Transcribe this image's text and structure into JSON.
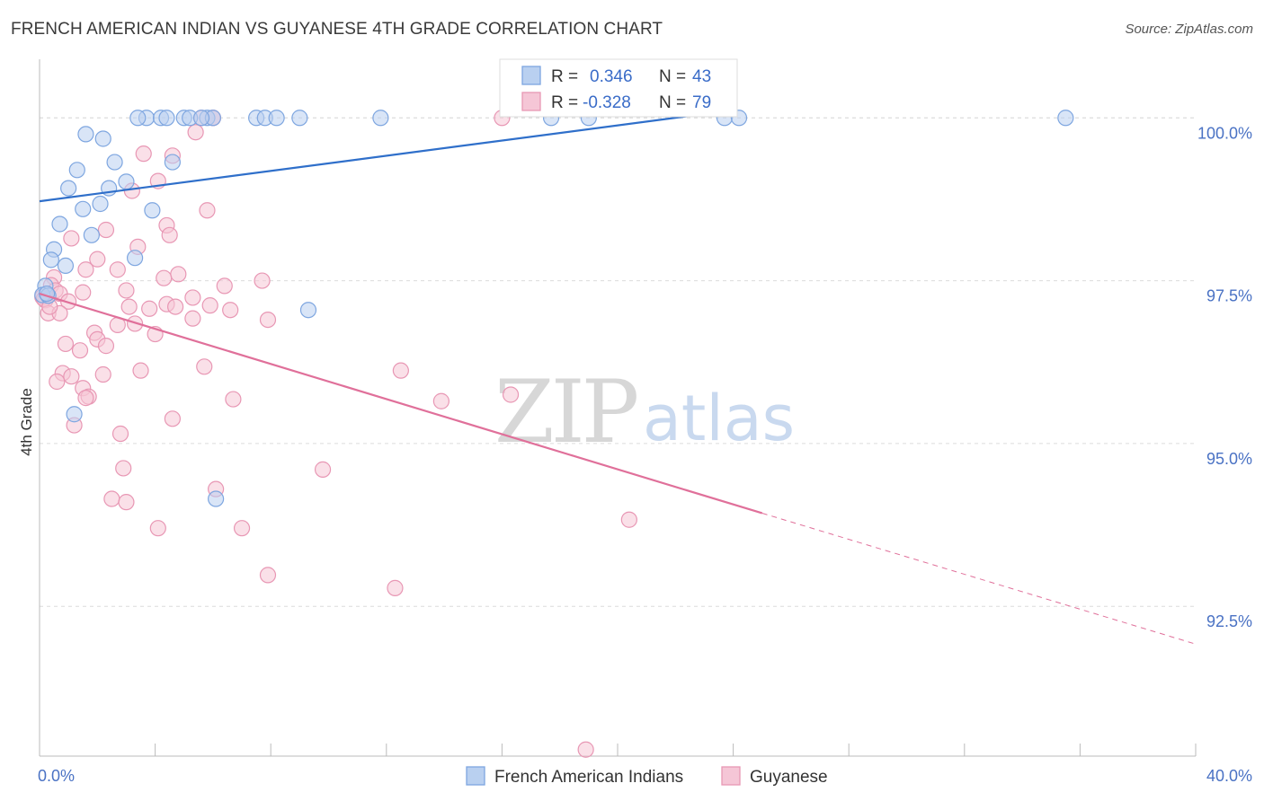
{
  "chart_data": {
    "type": "scatter",
    "title": "FRENCH AMERICAN INDIAN VS GUYANESE 4TH GRADE CORRELATION CHART",
    "source": "Source: ZipAtlas.com",
    "xlabel": "",
    "ylabel": "4th Grade",
    "xlim": [
      0,
      40
    ],
    "ylim": [
      90.2,
      100.9
    ],
    "x_tick_labels": [
      {
        "value": 0,
        "label": "0.0%"
      },
      {
        "value": 40,
        "label": "40.0%"
      }
    ],
    "y_tick_labels": [
      {
        "value": 100,
        "label": "100.0%"
      },
      {
        "value": 97.5,
        "label": "97.5%"
      },
      {
        "value": 95,
        "label": "95.0%"
      },
      {
        "value": 92.5,
        "label": "92.5%"
      }
    ],
    "grid": true,
    "watermark": {
      "zip": "ZIP",
      "atlas": "atlas"
    },
    "legend_position": "bottom",
    "stats_box_position": "top-center",
    "series": [
      {
        "name": "French American Indians",
        "color": "#7ea6e0",
        "fill": "#b9d0f0",
        "line_color": "#2f6fca",
        "R_label": "R =",
        "R": "0.346",
        "N_label": "N =",
        "N": "43",
        "trend": {
          "x0": 0,
          "y0": 98.72,
          "x1": 22.5,
          "y1": 100.03,
          "dashed_to": null
        },
        "points": [
          [
            3.7,
            100.0
          ],
          [
            4.2,
            100.0
          ],
          [
            5.0,
            100.0
          ],
          [
            5.8,
            100.0
          ],
          [
            3.4,
            100.0
          ],
          [
            4.4,
            100.0
          ],
          [
            5.2,
            100.0
          ],
          [
            6.0,
            100.0
          ],
          [
            7.5,
            100.0
          ],
          [
            7.8,
            100.0
          ],
          [
            8.2,
            100.0
          ],
          [
            9.0,
            100.0
          ],
          [
            11.8,
            100.0
          ],
          [
            17.7,
            100.0
          ],
          [
            19.0,
            100.0
          ],
          [
            23.7,
            100.0
          ],
          [
            24.2,
            100.0
          ],
          [
            35.5,
            100.0
          ],
          [
            1.6,
            99.75
          ],
          [
            2.2,
            99.68
          ],
          [
            2.6,
            99.32
          ],
          [
            4.6,
            99.32
          ],
          [
            1.3,
            99.2
          ],
          [
            3.0,
            99.02
          ],
          [
            1.0,
            98.92
          ],
          [
            2.4,
            98.92
          ],
          [
            2.1,
            98.68
          ],
          [
            1.5,
            98.6
          ],
          [
            3.9,
            98.58
          ],
          [
            0.7,
            98.37
          ],
          [
            1.8,
            98.2
          ],
          [
            0.5,
            97.98
          ],
          [
            0.4,
            97.82
          ],
          [
            3.3,
            97.85
          ],
          [
            0.9,
            97.73
          ],
          [
            0.2,
            97.42
          ],
          [
            0.1,
            97.28
          ],
          [
            0.3,
            97.27
          ],
          [
            0.25,
            97.3
          ],
          [
            9.3,
            97.05
          ],
          [
            1.2,
            95.45
          ],
          [
            6.1,
            94.15
          ],
          [
            5.6,
            100.0
          ]
        ]
      },
      {
        "name": "Guyanese",
        "color": "#e897b4",
        "fill": "#f5c6d6",
        "line_color": "#e0709a",
        "R_label": "R =",
        "R": "-0.328",
        "N_label": "N =",
        "N": "79",
        "trend": {
          "x0": 0,
          "y0": 97.3,
          "x1": 25.0,
          "y1": 93.93,
          "dashed_to": {
            "x": 40,
            "y": 91.92
          }
        },
        "points": [
          [
            5.6,
            100.0
          ],
          [
            6.0,
            100.0
          ],
          [
            16.0,
            100.0
          ],
          [
            5.4,
            99.78
          ],
          [
            3.6,
            99.45
          ],
          [
            4.6,
            99.42
          ],
          [
            4.1,
            99.03
          ],
          [
            3.2,
            98.88
          ],
          [
            5.8,
            98.58
          ],
          [
            4.4,
            98.35
          ],
          [
            2.3,
            98.28
          ],
          [
            4.5,
            98.2
          ],
          [
            1.1,
            98.15
          ],
          [
            3.4,
            98.02
          ],
          [
            2.0,
            97.83
          ],
          [
            1.6,
            97.67
          ],
          [
            2.7,
            97.67
          ],
          [
            4.8,
            97.6
          ],
          [
            0.5,
            97.55
          ],
          [
            4.3,
            97.54
          ],
          [
            7.7,
            97.5
          ],
          [
            0.4,
            97.43
          ],
          [
            6.4,
            97.42
          ],
          [
            0.55,
            97.35
          ],
          [
            3.0,
            97.35
          ],
          [
            1.5,
            97.32
          ],
          [
            0.7,
            97.3
          ],
          [
            5.3,
            97.24
          ],
          [
            0.2,
            97.2
          ],
          [
            1.0,
            97.18
          ],
          [
            4.4,
            97.14
          ],
          [
            4.7,
            97.1
          ],
          [
            5.9,
            97.12
          ],
          [
            3.1,
            97.1
          ],
          [
            3.8,
            97.07
          ],
          [
            6.6,
            97.05
          ],
          [
            0.3,
            97.0
          ],
          [
            0.7,
            97.0
          ],
          [
            5.3,
            96.92
          ],
          [
            7.9,
            96.9
          ],
          [
            3.3,
            96.84
          ],
          [
            2.7,
            96.82
          ],
          [
            1.9,
            96.7
          ],
          [
            4.0,
            96.68
          ],
          [
            2.0,
            96.6
          ],
          [
            0.9,
            96.53
          ],
          [
            2.3,
            96.5
          ],
          [
            1.4,
            96.43
          ],
          [
            5.7,
            96.18
          ],
          [
            3.5,
            96.12
          ],
          [
            12.5,
            96.12
          ],
          [
            0.8,
            96.08
          ],
          [
            1.1,
            96.03
          ],
          [
            2.2,
            96.06
          ],
          [
            0.6,
            95.95
          ],
          [
            1.5,
            95.85
          ],
          [
            1.7,
            95.72
          ],
          [
            1.6,
            95.7
          ],
          [
            6.7,
            95.68
          ],
          [
            13.9,
            95.65
          ],
          [
            16.3,
            95.75
          ],
          [
            4.6,
            95.38
          ],
          [
            1.2,
            95.28
          ],
          [
            2.8,
            95.15
          ],
          [
            2.9,
            94.62
          ],
          [
            9.8,
            94.6
          ],
          [
            6.1,
            94.3
          ],
          [
            2.5,
            94.15
          ],
          [
            3.0,
            94.1
          ],
          [
            20.4,
            93.83
          ],
          [
            4.1,
            93.7
          ],
          [
            7.0,
            93.7
          ],
          [
            7.9,
            92.98
          ],
          [
            12.3,
            92.78
          ],
          [
            18.9,
            90.3
          ],
          [
            0.1,
            97.25
          ],
          [
            0.15,
            97.22
          ],
          [
            0.35,
            97.1
          ],
          [
            6.0,
            100.0
          ]
        ]
      }
    ]
  }
}
